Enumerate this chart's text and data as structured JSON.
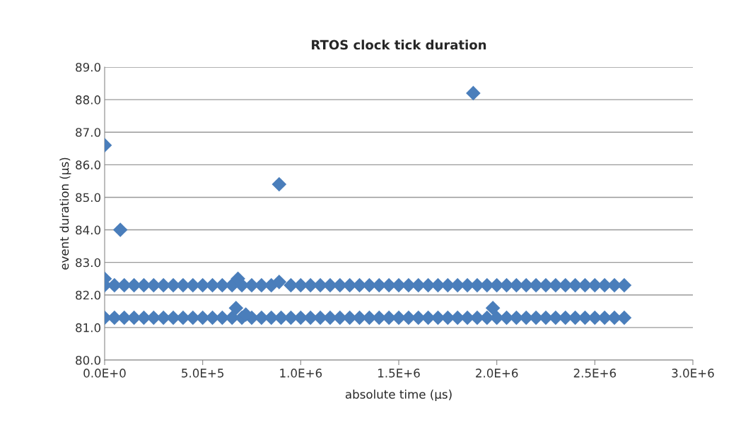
{
  "chart_data": {
    "type": "scatter",
    "title": "RTOS clock tick duration",
    "xlabel": "absolute time (µs)",
    "ylabel": "event duration (µs)",
    "marker": "diamond",
    "grid": "y",
    "legend": false,
    "xlim": [
      0,
      3000000
    ],
    "ylim": [
      80,
      89
    ],
    "xticks": [
      {
        "value": 0,
        "label": "0.0E+0"
      },
      {
        "value": 500000,
        "label": "5.0E+5"
      },
      {
        "value": 1000000,
        "label": "1.0E+6"
      },
      {
        "value": 1500000,
        "label": "1.5E+6"
      },
      {
        "value": 2000000,
        "label": "2.0E+6"
      },
      {
        "value": 2500000,
        "label": "2.5E+6"
      },
      {
        "value": 3000000,
        "label": "3.0E+6"
      }
    ],
    "yticks": [
      {
        "value": 80,
        "label": "80.0"
      },
      {
        "value": 81,
        "label": "81.0"
      },
      {
        "value": 82,
        "label": "82.0"
      },
      {
        "value": 83,
        "label": "83.0"
      },
      {
        "value": 84,
        "label": "84.0"
      },
      {
        "value": 85,
        "label": "85.0"
      },
      {
        "value": 86,
        "label": "86.0"
      },
      {
        "value": 87,
        "label": "87.0"
      },
      {
        "value": 88,
        "label": "88.0"
      },
      {
        "value": 89,
        "label": "89.0"
      }
    ],
    "series": [
      {
        "color": "#4a7ebb",
        "x": [
          0,
          50000,
          100000,
          150000,
          200000,
          250000,
          300000,
          350000,
          400000,
          450000,
          500000,
          550000,
          600000,
          650000,
          700000,
          750000,
          800000,
          850000,
          900000,
          950000,
          1000000,
          1050000,
          1100000,
          1150000,
          1200000,
          1250000,
          1300000,
          1350000,
          1400000,
          1450000,
          1500000,
          1550000,
          1600000,
          1650000,
          1700000,
          1750000,
          1800000,
          1850000,
          1900000,
          1950000,
          2000000,
          2050000,
          2100000,
          2150000,
          2200000,
          2250000,
          2300000,
          2350000,
          2400000,
          2450000,
          2500000,
          2550000,
          2600000,
          2650000
        ],
        "values": [
          82.3,
          82.3,
          82.3,
          82.3,
          82.3,
          82.3,
          82.3,
          82.3,
          82.3,
          82.3,
          82.3,
          82.3,
          82.3,
          82.3,
          82.3,
          82.3,
          82.3,
          82.3,
          null,
          82.3,
          82.3,
          82.3,
          82.3,
          82.3,
          82.3,
          82.3,
          82.3,
          82.3,
          82.3,
          82.3,
          82.3,
          82.3,
          82.3,
          82.3,
          82.3,
          82.3,
          82.3,
          82.3,
          82.3,
          82.3,
          82.3,
          82.3,
          82.3,
          82.3,
          82.3,
          82.3,
          82.3,
          82.3,
          82.3,
          82.3,
          82.3,
          82.3,
          82.3,
          82.3
        ]
      },
      {
        "color": "#4a7ebb",
        "x": [
          0,
          50000,
          100000,
          150000,
          200000,
          250000,
          300000,
          350000,
          400000,
          450000,
          500000,
          550000,
          600000,
          650000,
          700000,
          750000,
          800000,
          850000,
          900000,
          950000,
          1000000,
          1050000,
          1100000,
          1150000,
          1200000,
          1250000,
          1300000,
          1350000,
          1400000,
          1450000,
          1500000,
          1550000,
          1600000,
          1650000,
          1700000,
          1750000,
          1800000,
          1850000,
          1900000,
          1950000,
          2000000,
          2050000,
          2100000,
          2150000,
          2200000,
          2250000,
          2300000,
          2350000,
          2400000,
          2450000,
          2500000,
          2550000,
          2600000,
          2650000
        ],
        "values": [
          81.3,
          81.3,
          81.3,
          81.3,
          81.3,
          81.3,
          81.3,
          81.3,
          81.3,
          81.3,
          81.3,
          81.3,
          81.3,
          81.3,
          81.3,
          81.3,
          81.3,
          81.3,
          81.3,
          81.3,
          81.3,
          81.3,
          81.3,
          81.3,
          81.3,
          81.3,
          81.3,
          81.3,
          81.3,
          81.3,
          81.3,
          81.3,
          81.3,
          81.3,
          81.3,
          81.3,
          81.3,
          81.3,
          81.3,
          81.3,
          81.3,
          81.3,
          81.3,
          81.3,
          81.3,
          81.3,
          81.3,
          81.3,
          81.3,
          81.3,
          81.3,
          81.3,
          81.3,
          81.3
        ]
      },
      {
        "color": "#4a7ebb",
        "x": [
          0,
          80000,
          890000,
          1880000,
          0,
          680000,
          890000,
          670000,
          720000,
          1980000
        ],
        "values": [
          86.6,
          84.0,
          85.4,
          88.2,
          82.5,
          82.5,
          82.4,
          81.6,
          81.4,
          81.6
        ]
      }
    ]
  }
}
